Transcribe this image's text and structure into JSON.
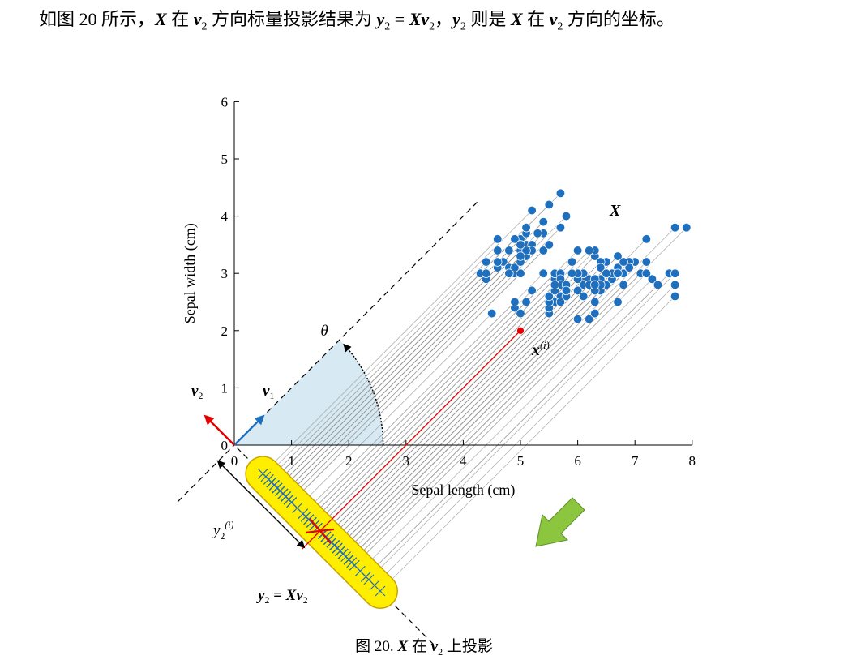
{
  "intro": {
    "t1": "如图 20 所示，",
    "X": "X",
    "t2": " 在 ",
    "v2": "v",
    "v2sub": "2",
    "t3": " 方向标量投影结果为 ",
    "y2": "y",
    "y2sub": "2",
    "eq": " = ",
    "Xv": "Xv",
    "Xvsub": "2",
    "t4": "，",
    "y2b": "y",
    "y2bsub": "2",
    "t5": " 则是 ",
    "X2": "X",
    "t6": " 在 ",
    "v2b": "v",
    "v2bsub": "2",
    "t7": " 方向的坐标。"
  },
  "caption": {
    "prefix": "图 20. ",
    "X": "X",
    "mid": " 在 ",
    "v": "v",
    "vsub": "2",
    "suffix": " 上投影"
  },
  "chart_data": {
    "type": "scatter",
    "xlabel": "Sepal length (cm)",
    "ylabel": "Sepal width (cm)",
    "xlim": [
      0,
      8
    ],
    "ylim": [
      0,
      6
    ],
    "xticks": [
      "0",
      "1",
      "2",
      "3",
      "4",
      "5",
      "6",
      "7",
      "8"
    ],
    "yticks": [
      "0",
      "1",
      "2",
      "3",
      "4",
      "5",
      "6"
    ],
    "v1_angle_deg": 45,
    "v2_angle_deg": 135,
    "labels": {
      "theta": "θ",
      "X": "X",
      "v1": "v",
      "v1sub": "1",
      "v2": "v",
      "v2sub": "2",
      "xi": "x",
      "xisup": "(i)",
      "y2i": "y",
      "y2isub": "2",
      "y2isup": "(i)",
      "y2eq": "y",
      "y2eqsub": "2",
      "y2eqrest": " = Xv",
      "y2eqsub2": "2"
    },
    "highlight_point": [
      5.0,
      2.0
    ],
    "colors": {
      "points": "#1f6fbf",
      "highlight": "#e60000",
      "v1": "#1f6fbf",
      "v2": "#e60000",
      "sector": "#d7eaf3",
      "band": "#ffee00",
      "arrow": "#8cc63f"
    },
    "points": [
      [
        5.1,
        3.5
      ],
      [
        4.9,
        3.0
      ],
      [
        4.7,
        3.2
      ],
      [
        4.6,
        3.1
      ],
      [
        5.0,
        3.6
      ],
      [
        5.4,
        3.9
      ],
      [
        4.6,
        3.4
      ],
      [
        5.0,
        3.4
      ],
      [
        4.4,
        2.9
      ],
      [
        4.9,
        3.1
      ],
      [
        5.4,
        3.7
      ],
      [
        4.8,
        3.4
      ],
      [
        4.8,
        3.0
      ],
      [
        4.3,
        3.0
      ],
      [
        5.8,
        4.0
      ],
      [
        5.7,
        4.4
      ],
      [
        5.4,
        3.9
      ],
      [
        5.1,
        3.5
      ],
      [
        5.7,
        3.8
      ],
      [
        5.1,
        3.8
      ],
      [
        5.4,
        3.4
      ],
      [
        5.1,
        3.7
      ],
      [
        4.6,
        3.6
      ],
      [
        5.1,
        3.3
      ],
      [
        4.8,
        3.4
      ],
      [
        5.0,
        3.0
      ],
      [
        5.0,
        3.4
      ],
      [
        5.2,
        3.5
      ],
      [
        5.2,
        3.4
      ],
      [
        4.7,
        3.2
      ],
      [
        4.8,
        3.1
      ],
      [
        5.4,
        3.4
      ],
      [
        5.2,
        4.1
      ],
      [
        5.5,
        4.2
      ],
      [
        4.9,
        3.1
      ],
      [
        5.0,
        3.2
      ],
      [
        5.5,
        3.5
      ],
      [
        4.9,
        3.6
      ],
      [
        4.4,
        3.0
      ],
      [
        5.1,
        3.4
      ],
      [
        5.0,
        3.5
      ],
      [
        4.5,
        2.3
      ],
      [
        4.4,
        3.2
      ],
      [
        5.0,
        3.5
      ],
      [
        5.1,
        3.8
      ],
      [
        4.8,
        3.0
      ],
      [
        5.1,
        3.8
      ],
      [
        4.6,
        3.2
      ],
      [
        5.3,
        3.7
      ],
      [
        5.0,
        3.3
      ],
      [
        7.0,
        3.2
      ],
      [
        6.4,
        3.2
      ],
      [
        6.9,
        3.1
      ],
      [
        5.5,
        2.3
      ],
      [
        6.5,
        2.8
      ],
      [
        5.7,
        2.8
      ],
      [
        6.3,
        3.3
      ],
      [
        4.9,
        2.4
      ],
      [
        6.6,
        2.9
      ],
      [
        5.2,
        2.7
      ],
      [
        5.0,
        2.0
      ],
      [
        5.9,
        3.0
      ],
      [
        6.0,
        2.2
      ],
      [
        6.1,
        2.9
      ],
      [
        5.6,
        2.9
      ],
      [
        6.7,
        3.1
      ],
      [
        5.6,
        3.0
      ],
      [
        5.8,
        2.7
      ],
      [
        6.2,
        2.2
      ],
      [
        5.6,
        2.5
      ],
      [
        5.9,
        3.2
      ],
      [
        6.1,
        2.8
      ],
      [
        6.3,
        2.5
      ],
      [
        6.1,
        2.8
      ],
      [
        6.4,
        2.9
      ],
      [
        6.6,
        3.0
      ],
      [
        6.8,
        2.8
      ],
      [
        6.7,
        3.0
      ],
      [
        6.0,
        2.9
      ],
      [
        5.7,
        2.6
      ],
      [
        5.5,
        2.4
      ],
      [
        5.5,
        2.4
      ],
      [
        5.8,
        2.7
      ],
      [
        6.0,
        2.7
      ],
      [
        5.4,
        3.0
      ],
      [
        6.0,
        3.4
      ],
      [
        6.7,
        3.1
      ],
      [
        6.3,
        2.3
      ],
      [
        5.6,
        3.0
      ],
      [
        5.5,
        2.5
      ],
      [
        5.5,
        2.6
      ],
      [
        6.1,
        3.0
      ],
      [
        5.8,
        2.6
      ],
      [
        5.0,
        2.3
      ],
      [
        5.6,
        2.7
      ],
      [
        5.7,
        3.0
      ],
      [
        5.7,
        2.9
      ],
      [
        6.2,
        2.9
      ],
      [
        5.1,
        2.5
      ],
      [
        5.7,
        2.8
      ],
      [
        6.3,
        3.3
      ],
      [
        5.8,
        2.7
      ],
      [
        7.1,
        3.0
      ],
      [
        6.3,
        2.9
      ],
      [
        6.5,
        3.0
      ],
      [
        7.6,
        3.0
      ],
      [
        4.9,
        2.5
      ],
      [
        7.3,
        2.9
      ],
      [
        6.7,
        2.5
      ],
      [
        7.2,
        3.6
      ],
      [
        6.5,
        3.2
      ],
      [
        6.4,
        2.7
      ],
      [
        6.8,
        3.0
      ],
      [
        5.7,
        2.5
      ],
      [
        5.8,
        2.8
      ],
      [
        6.4,
        3.2
      ],
      [
        6.5,
        3.0
      ],
      [
        7.7,
        3.8
      ],
      [
        7.7,
        2.6
      ],
      [
        6.0,
        2.2
      ],
      [
        6.9,
        3.2
      ],
      [
        5.6,
        2.8
      ],
      [
        7.7,
        2.8
      ],
      [
        6.3,
        2.7
      ],
      [
        6.7,
        3.3
      ],
      [
        7.2,
        3.2
      ],
      [
        6.2,
        2.8
      ],
      [
        6.1,
        3.0
      ],
      [
        6.4,
        2.8
      ],
      [
        7.2,
        3.0
      ],
      [
        7.4,
        2.8
      ],
      [
        7.9,
        3.8
      ],
      [
        6.4,
        2.8
      ],
      [
        6.3,
        2.8
      ],
      [
        6.1,
        2.6
      ],
      [
        7.7,
        3.0
      ],
      [
        6.3,
        3.4
      ],
      [
        6.4,
        3.1
      ],
      [
        6.0,
        3.0
      ],
      [
        6.9,
        3.1
      ],
      [
        6.7,
        3.1
      ],
      [
        6.9,
        3.1
      ],
      [
        5.8,
        2.7
      ],
      [
        6.8,
        3.2
      ],
      [
        6.7,
        3.3
      ],
      [
        6.7,
        3.0
      ],
      [
        6.3,
        2.5
      ],
      [
        6.5,
        3.0
      ],
      [
        6.2,
        3.4
      ],
      [
        5.9,
        3.0
      ]
    ]
  }
}
